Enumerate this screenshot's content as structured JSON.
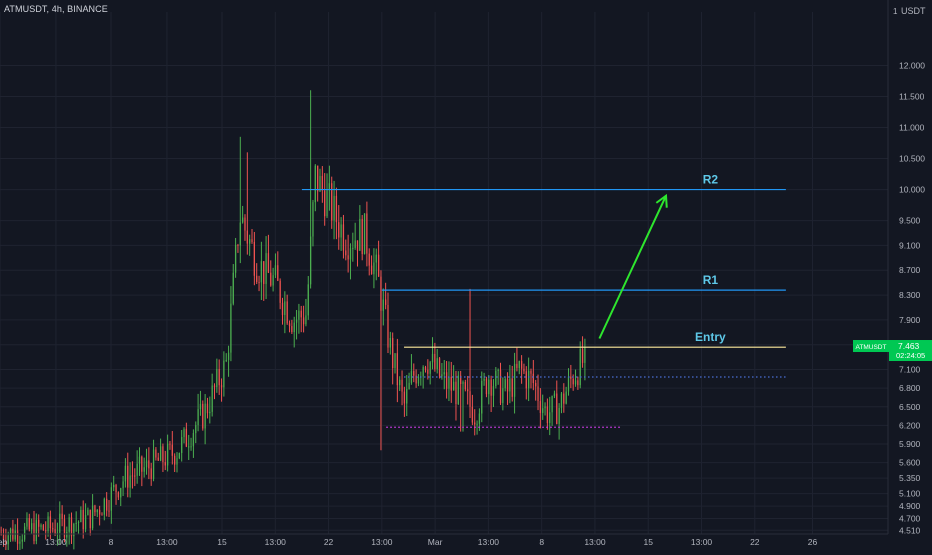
{
  "header": {
    "title": "ATMUSDT, 4h, BINANCE",
    "currency": "USDT"
  },
  "colors": {
    "background": "#131722",
    "grid": "#1f2330",
    "axis_text": "#b2b5be",
    "up": "#26a69a",
    "up_body": "#4caf50",
    "down": "#ef5350",
    "resistance_line": "#2196f3",
    "entry_line": "#ffeb9c",
    "support_line": "#e040fb",
    "dotted_line": "#4a6fd6",
    "arrow": "#2ee62e",
    "label_text": "#5ec8e8",
    "price_tag_bg": "#00c853"
  },
  "chart_data": {
    "type": "candlestick",
    "title": "ATMUSDT, 4h, BINANCE",
    "ylim": [
      4.45,
      12.7
    ],
    "y_ticks": [
      "12.000",
      "11.500",
      "11.000",
      "10.500",
      "10.000",
      "9.500",
      "9.100",
      "8.700",
      "8.300",
      "7.900",
      "7.500",
      "7.100",
      "6.800",
      "6.500",
      "6.200",
      "5.900",
      "5.600",
      "5.350",
      "5.100",
      "4.900",
      "4.700",
      "4.510"
    ],
    "x_ticks": [
      "Feb",
      "13:00",
      "8",
      "13:00",
      "15",
      "13:00",
      "22",
      "13:00",
      "Mar",
      "13:00",
      "8",
      "13:00",
      "15",
      "13:00",
      "22",
      "26"
    ],
    "axis_corner_label": "1",
    "current_price": {
      "symbol": "ATMUSDT",
      "value": "7.463",
      "countdown": "02:24:05"
    },
    "levels": [
      {
        "label": "R2",
        "value": 10.0,
        "x_from": 0.34,
        "x_to": 0.885,
        "style": "solid",
        "color": "#2196f3"
      },
      {
        "label": "R1",
        "value": 8.38,
        "x_from": 0.43,
        "x_to": 0.885,
        "style": "solid",
        "color": "#2196f3"
      },
      {
        "label": "Entry",
        "value": 7.46,
        "x_from": 0.455,
        "x_to": 0.885,
        "style": "solid",
        "color": "#ffeb9c"
      },
      {
        "label": "",
        "value": 6.98,
        "x_from": 0.455,
        "x_to": 0.885,
        "style": "dotted",
        "color": "#4a6fd6"
      },
      {
        "label": "",
        "value": 6.17,
        "x_from": 0.435,
        "x_to": 0.7,
        "style": "dotted",
        "color": "#e040fb"
      }
    ],
    "annotations": [
      {
        "type": "arrow",
        "from": {
          "x": 0.675,
          "y": 7.6
        },
        "to": {
          "x": 0.75,
          "y": 9.9
        },
        "color": "#2ee62e"
      }
    ],
    "anchors": [
      {
        "x": 0.0,
        "y": 4.45
      },
      {
        "x": 0.06,
        "y": 4.55
      },
      {
        "x": 0.1,
        "y": 4.7
      },
      {
        "x": 0.12,
        "y": 5.0
      },
      {
        "x": 0.14,
        "y": 5.35
      },
      {
        "x": 0.17,
        "y": 5.55
      },
      {
        "x": 0.2,
        "y": 5.8
      },
      {
        "x": 0.23,
        "y": 6.4
      },
      {
        "x": 0.255,
        "y": 7.2
      },
      {
        "x": 0.27,
        "y": 9.6
      },
      {
        "x": 0.29,
        "y": 8.8
      },
      {
        "x": 0.31,
        "y": 8.5
      },
      {
        "x": 0.33,
        "y": 7.9
      },
      {
        "x": 0.345,
        "y": 8.0
      },
      {
        "x": 0.355,
        "y": 10.2
      },
      {
        "x": 0.37,
        "y": 9.8
      },
      {
        "x": 0.39,
        "y": 9.2
      },
      {
        "x": 0.41,
        "y": 9.3
      },
      {
        "x": 0.425,
        "y": 8.6
      },
      {
        "x": 0.44,
        "y": 7.4
      },
      {
        "x": 0.455,
        "y": 6.5
      },
      {
        "x": 0.465,
        "y": 7.0
      },
      {
        "x": 0.48,
        "y": 7.3
      },
      {
        "x": 0.5,
        "y": 6.9
      },
      {
        "x": 0.52,
        "y": 6.7
      },
      {
        "x": 0.535,
        "y": 6.4
      },
      {
        "x": 0.55,
        "y": 7.0
      },
      {
        "x": 0.57,
        "y": 6.7
      },
      {
        "x": 0.585,
        "y": 7.1
      },
      {
        "x": 0.6,
        "y": 6.9
      },
      {
        "x": 0.615,
        "y": 6.4
      },
      {
        "x": 0.63,
        "y": 6.5
      },
      {
        "x": 0.645,
        "y": 7.0
      },
      {
        "x": 0.66,
        "y": 7.3
      }
    ],
    "spikes": [
      {
        "x": 0.27,
        "high": 10.85
      },
      {
        "x": 0.278,
        "high": 10.6
      },
      {
        "x": 0.35,
        "high": 11.6
      },
      {
        "x": 0.53,
        "high": 8.4
      },
      {
        "x": 0.43,
        "low": 5.8
      },
      {
        "x": 0.52,
        "low": 6.1
      }
    ],
    "candle_count": 250,
    "x_range_data": [
      0,
      0.66
    ]
  }
}
